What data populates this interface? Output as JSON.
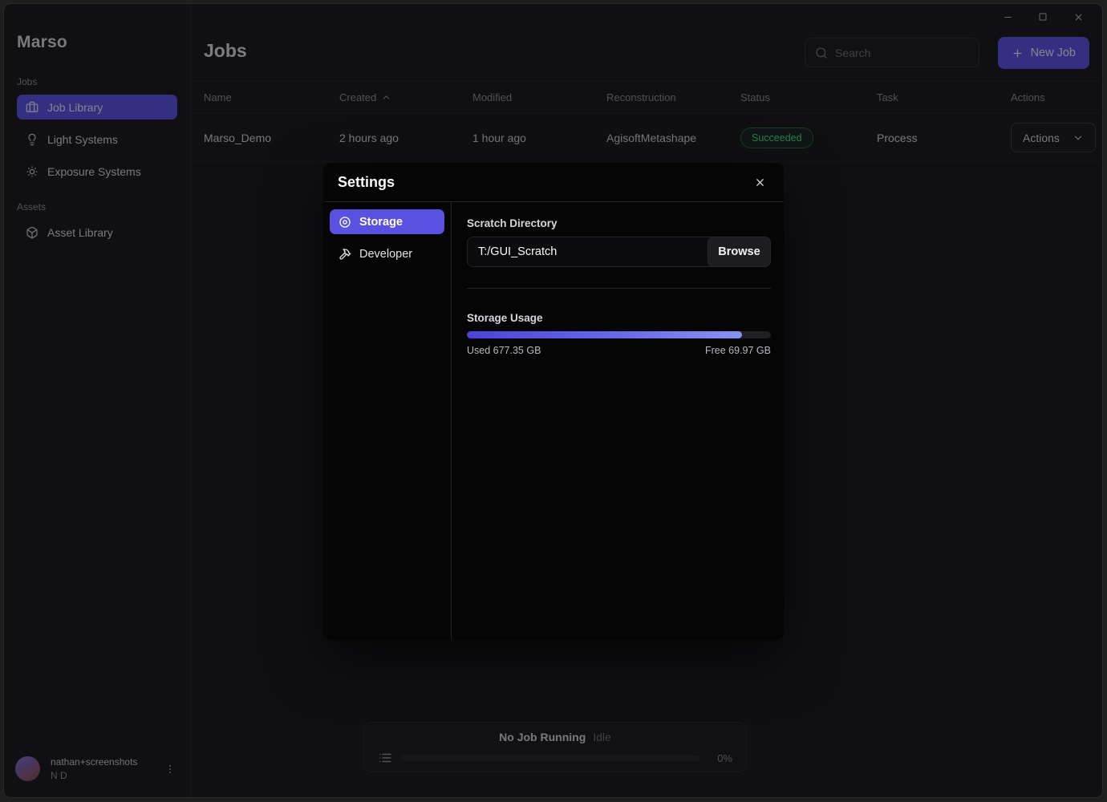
{
  "window": {
    "controls": {
      "minimize": "minimize",
      "maximize": "maximize",
      "close": "close"
    }
  },
  "sidebar": {
    "app_title": "Marso",
    "sections": [
      {
        "label": "Jobs",
        "items": [
          {
            "label": "Job Library",
            "icon": "briefcase-icon",
            "active": true
          },
          {
            "label": "Light Systems",
            "icon": "lightbulb-icon",
            "active": false
          },
          {
            "label": "Exposure Systems",
            "icon": "sun-icon",
            "active": false
          }
        ]
      },
      {
        "label": "Assets",
        "items": [
          {
            "label": "Asset Library",
            "icon": "cube-icon",
            "active": false
          }
        ]
      }
    ],
    "user": {
      "name": "nathan+screenshots",
      "initials": "N D"
    }
  },
  "header": {
    "page_title": "Jobs",
    "search_placeholder": "Search",
    "new_job_label": "New Job"
  },
  "table": {
    "columns": [
      "Name",
      "Created",
      "Modified",
      "Reconstruction",
      "Status",
      "Task",
      "Actions"
    ],
    "sorted_column": "Created",
    "sort_direction": "asc",
    "rows": [
      {
        "name": "Marso_Demo",
        "created": "2 hours ago",
        "modified": "1 hour ago",
        "reconstruction": "AgisoftMetashape",
        "status": "Succeeded",
        "task": "Process",
        "actions_label": "Actions"
      }
    ]
  },
  "modal": {
    "title": "Settings",
    "tabs": [
      {
        "label": "Storage",
        "icon": "disc-icon",
        "active": true
      },
      {
        "label": "Developer",
        "icon": "hammer-icon",
        "active": false
      }
    ],
    "scratch_directory": {
      "label": "Scratch Directory",
      "value": "T:/GUI_Scratch",
      "browse_label": "Browse"
    },
    "storage_usage": {
      "label": "Storage Usage",
      "used_label": "Used 677.35 GB",
      "free_label": "Free 69.97 GB",
      "used_gb": 677.35,
      "free_gb": 69.97,
      "percent_used": 90.6
    }
  },
  "status_bar": {
    "title": "No Job Running",
    "state": "Idle",
    "percent": "0%",
    "percent_value": 0
  },
  "colors": {
    "accent": "#5b51e1",
    "success": "#4ade80",
    "modal_bg": "#050506",
    "window_bg": "#1a1a1d"
  }
}
